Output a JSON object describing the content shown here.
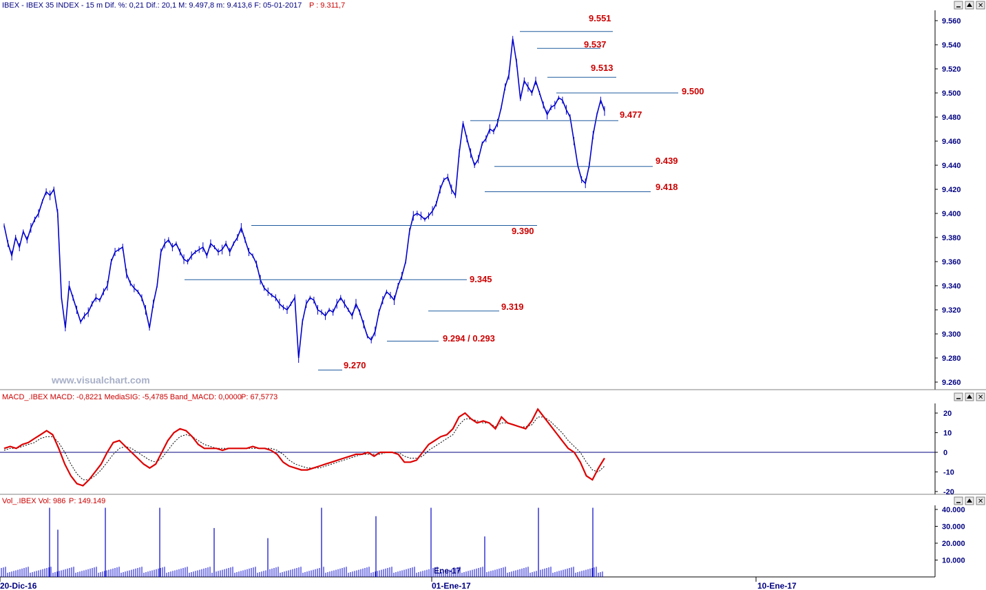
{
  "header": {
    "price": "IBEX - IBEX 35 INDEX -  15 m  Dif. %: 0,21  Dif.: 20,1  M: 9.497,8  m: 9.413,6  F: 05-01-2017",
    "price_p": "P : 9.311,7",
    "macd": "MACD_.IBEX MACD: -0,8221  MediaSIG: -5,4785  Band_MACD: 0,0000",
    "macd_p": "P: 67,5773",
    "vol": "Vol_.IBEX Vol: 986",
    "vol_p": "P: 149.149"
  },
  "watermark": "www.visualchart.com",
  "colors": {
    "price": "#0000cc",
    "macd": "#dd0000",
    "signal": "#000000",
    "level_line": "#1e5a9e",
    "level_text": "#cc0000",
    "axis_text": "#000080"
  },
  "chart_data": [
    {
      "type": "line",
      "name": "price",
      "ylim": [
        9250,
        9570
      ],
      "yticks": [
        "9.260",
        "9.280",
        "9.300",
        "9.320",
        "9.340",
        "9.360",
        "9.380",
        "9.400",
        "9.420",
        "9.440",
        "9.460",
        "9.480",
        "9.500",
        "9.520",
        "9.540",
        "9.560"
      ],
      "ytick_values": [
        9260,
        9280,
        9300,
        9320,
        9340,
        9360,
        9380,
        9400,
        9420,
        9440,
        9460,
        9480,
        9500,
        9520,
        9540,
        9560
      ],
      "xlabels": [
        "20-Dic-16",
        "01-Ene-17",
        "Ene-17",
        "10-Ene-17"
      ],
      "values": [
        9390,
        9375,
        9365,
        9380,
        9372,
        9385,
        9378,
        9388,
        9395,
        9400,
        9410,
        9418,
        9415,
        9420,
        9400,
        9330,
        9305,
        9340,
        9330,
        9320,
        9310,
        9315,
        9318,
        9325,
        9330,
        9328,
        9335,
        9340,
        9360,
        9368,
        9370,
        9372,
        9350,
        9342,
        9338,
        9335,
        9330,
        9320,
        9305,
        9325,
        9340,
        9368,
        9375,
        9378,
        9372,
        9375,
        9368,
        9362,
        9360,
        9365,
        9368,
        9370,
        9372,
        9365,
        9375,
        9372,
        9368,
        9370,
        9375,
        9368,
        9375,
        9380,
        9388,
        9378,
        9368,
        9365,
        9358,
        9345,
        9338,
        9335,
        9332,
        9330,
        9325,
        9322,
        9320,
        9325,
        9330,
        9280,
        9310,
        9325,
        9330,
        9328,
        9320,
        9318,
        9315,
        9320,
        9318,
        9325,
        9330,
        9325,
        9320,
        9315,
        9325,
        9318,
        9308,
        9298,
        9295,
        9302,
        9318,
        9328,
        9335,
        9332,
        9328,
        9340,
        9348,
        9360,
        9385,
        9398,
        9400,
        9398,
        9395,
        9398,
        9402,
        9408,
        9420,
        9428,
        9430,
        9420,
        9415,
        9450,
        9475,
        9462,
        9450,
        9440,
        9445,
        9458,
        9462,
        9470,
        9468,
        9475,
        9488,
        9505,
        9515,
        9545,
        9525,
        9495,
        9510,
        9505,
        9500,
        9510,
        9500,
        9490,
        9482,
        9488,
        9490,
        9496,
        9494,
        9486,
        9480,
        9460,
        9440,
        9428,
        9425,
        9440,
        9465,
        9482,
        9494,
        9485
      ],
      "levels": [
        {
          "value": 9551,
          "label": "9.551"
        },
        {
          "value": 9537,
          "label": "9.537"
        },
        {
          "value": 9513,
          "label": "9.513"
        },
        {
          "value": 9500,
          "label": "9.500"
        },
        {
          "value": 9477,
          "label": "9.477"
        },
        {
          "value": 9439,
          "label": "9.439"
        },
        {
          "value": 9418,
          "label": "9.418"
        },
        {
          "value": 9390,
          "label": "9.390"
        },
        {
          "value": 9345,
          "label": "9.345"
        },
        {
          "value": 9319,
          "label": "9.319"
        },
        {
          "value": 9294,
          "label": "9.294 / 0.293"
        },
        {
          "value": 9270,
          "label": "9.270"
        }
      ]
    },
    {
      "type": "line",
      "name": "macd",
      "ylim": [
        -22,
        24
      ],
      "yticks": [
        "20",
        "10",
        "0",
        "-10",
        "-20"
      ],
      "ytick_values": [
        20,
        10,
        0,
        -10,
        -20
      ],
      "macd": [
        2,
        3,
        2,
        4,
        5,
        7,
        9,
        11,
        9,
        2,
        -6,
        -12,
        -16,
        -17,
        -14,
        -10,
        -6,
        0,
        5,
        6,
        3,
        0,
        -3,
        -6,
        -8,
        -6,
        0,
        6,
        10,
        12,
        11,
        8,
        4,
        2,
        2,
        2,
        1,
        2,
        2,
        2,
        2,
        3,
        2,
        2,
        1,
        -1,
        -5,
        -7,
        -8,
        -9,
        -9,
        -8,
        -7,
        -6,
        -5,
        -4,
        -3,
        -2,
        -1,
        -1,
        0,
        -2,
        0,
        0,
        0,
        -1,
        -5,
        -5,
        -4,
        0,
        4,
        6,
        8,
        9,
        12,
        18,
        20,
        17,
        15,
        16,
        15,
        12,
        18,
        15,
        14,
        13,
        12,
        16,
        22,
        18,
        14,
        10,
        6,
        2,
        0,
        -5,
        -12,
        -14,
        -8,
        -3
      ],
      "signal": [
        1,
        2,
        2,
        3,
        4,
        5,
        7,
        8,
        8,
        5,
        0,
        -6,
        -11,
        -14,
        -14,
        -12,
        -9,
        -5,
        -1,
        2,
        3,
        2,
        0,
        -2,
        -4,
        -5,
        -3,
        1,
        5,
        8,
        9,
        8,
        6,
        4,
        3,
        2,
        2,
        2,
        2,
        2,
        2,
        2,
        2,
        2,
        2,
        1,
        -1,
        -4,
        -6,
        -7,
        -8,
        -8,
        -8,
        -7,
        -6,
        -5,
        -4,
        -3,
        -2,
        -1,
        -1,
        -1,
        -1,
        0,
        0,
        0,
        -2,
        -3,
        -3,
        -2,
        1,
        3,
        5,
        7,
        9,
        14,
        17,
        17,
        16,
        15,
        15,
        13,
        15,
        15,
        14,
        13,
        13,
        14,
        18,
        18,
        16,
        13,
        10,
        6,
        3,
        0,
        -5,
        -9,
        -10,
        -7
      ]
    },
    {
      "type": "bar",
      "name": "volume",
      "ylim": [
        0,
        42000
      ],
      "yticks": [
        "40.000",
        "30.000",
        "20.000",
        "10.000"
      ],
      "ytick_values": [
        40000,
        30000,
        20000,
        10000
      ],
      "spikes": [
        {
          "x": 72,
          "value": 41000
        },
        {
          "x": 84,
          "value": 28000
        },
        {
          "x": 153,
          "value": 41000
        },
        {
          "x": 232,
          "value": 41000
        },
        {
          "x": 311,
          "value": 29000
        },
        {
          "x": 389,
          "value": 23000
        },
        {
          "x": 467,
          "value": 41000
        },
        {
          "x": 546,
          "value": 36000
        },
        {
          "x": 626,
          "value": 41000
        },
        {
          "x": 704,
          "value": 24000
        },
        {
          "x": 782,
          "value": 41000
        },
        {
          "x": 861,
          "value": 41000
        }
      ],
      "baseline": 2500
    }
  ]
}
